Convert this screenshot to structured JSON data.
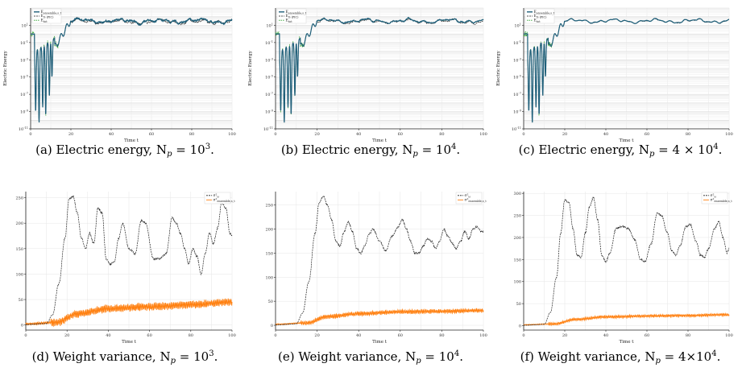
{
  "colors": {
    "subsampled": "#1f5f7a",
    "ssir": "#3d6b40",
    "ssir_dash": "#1f1f1f",
    "ssir_green": "#2ca02c",
    "variance_orange": "#ff7f0e",
    "variance_black": "#222222",
    "grid": "#e6e6e6"
  },
  "chart_data": [
    {
      "id": "a",
      "type": "line",
      "caption": "(a) Electric energy, N_p = 10^3.",
      "caption_main": "(a) Electric energy, N",
      "caption_sub": "p",
      "caption_tail": " = 10",
      "caption_sup": "3",
      "caption_end": ".",
      "xlabel": "Time t",
      "ylabel": "Electric Energy",
      "xlim": [
        0,
        100
      ],
      "yscale": "log",
      "ylim": [
        1e-11,
        1000.0
      ],
      "xticks": [
        "0",
        "20",
        "40",
        "60",
        "80",
        "100"
      ],
      "yticks": [
        "10^1",
        "10^-1",
        "10^-3",
        "10^-5",
        "10^-7",
        "10^-9",
        "10^-11"
      ],
      "legend": [
        "E_ensemble,s_t",
        "E_G (PIC)",
        "E_tot"
      ],
      "legend_pos": "top-left",
      "noise": 1.0,
      "seed": 11
    },
    {
      "id": "b",
      "type": "line",
      "caption_main": "(b) Electric energy, N",
      "caption_sub": "p",
      "caption_tail": " = 10",
      "caption_sup": "4",
      "caption_end": ".",
      "xlabel": "Time t",
      "ylabel": "Electric Energy",
      "xlim": [
        0,
        100
      ],
      "yscale": "log",
      "ylim": [
        1e-11,
        1000.0
      ],
      "xticks": [
        "0",
        "20",
        "40",
        "60",
        "80",
        "100"
      ],
      "yticks": [
        "10^1",
        "10^-1",
        "10^-3",
        "10^-5",
        "10^-7",
        "10^-9",
        "10^-11"
      ],
      "legend": [
        "E_ensemble,s_t",
        "E_G (PIC)",
        "E_tot"
      ],
      "legend_pos": "top-left",
      "noise": 0.6,
      "seed": 23
    },
    {
      "id": "c",
      "type": "line",
      "caption_main": "(c) Electric energy, N",
      "caption_sub": "p",
      "caption_tail": " = 4 × 10",
      "caption_sup": "4",
      "caption_end": ".",
      "xlabel": "Time t",
      "ylabel": "Electric Energy",
      "xlim": [
        0,
        100
      ],
      "yscale": "log",
      "ylim": [
        1e-11,
        1000.0
      ],
      "xticks": [
        "0",
        "20",
        "40",
        "60",
        "80",
        "100"
      ],
      "yticks": [
        "10^1",
        "10^-1",
        "10^-3",
        "10^-5",
        "10^-7",
        "10^-9",
        "10^-11"
      ],
      "legend": [
        "E_ensemble,s_t",
        "E_G (PIC)",
        "E_tot"
      ],
      "legend_pos": "top-left",
      "noise": 0.2,
      "seed": 37
    },
    {
      "id": "d",
      "type": "line",
      "caption_main": "(d) Weight variance, N",
      "caption_sub": "p",
      "caption_tail": " = 10",
      "caption_sup": "3",
      "caption_end": ".",
      "xlabel": "Time t",
      "xlim": [
        0,
        100
      ],
      "ylim": [
        -10,
        262
      ],
      "xticks": [
        "0",
        "20",
        "40",
        "60",
        "80",
        "100"
      ],
      "yticks": [
        "0",
        "50",
        "100",
        "150",
        "200",
        "250"
      ],
      "yvals": [
        0,
        50,
        100,
        150,
        200,
        250
      ],
      "legend": [
        "σ²_ω",
        "σ²_ensemble,s_t"
      ],
      "legend_pos": "top-right",
      "black_keypoints": [
        [
          0,
          1
        ],
        [
          10,
          3
        ],
        [
          13,
          20
        ],
        [
          16,
          80
        ],
        [
          19,
          170
        ],
        [
          21,
          248
        ],
        [
          23,
          252
        ],
        [
          25,
          220
        ],
        [
          27,
          170
        ],
        [
          29,
          150
        ],
        [
          31,
          180
        ],
        [
          33,
          160
        ],
        [
          35,
          230
        ],
        [
          37,
          220
        ],
        [
          39,
          130
        ],
        [
          41,
          120
        ],
        [
          43,
          125
        ],
        [
          45,
          170
        ],
        [
          47,
          200
        ],
        [
          50,
          150
        ],
        [
          53,
          140
        ],
        [
          56,
          205
        ],
        [
          58,
          200
        ],
        [
          62,
          130
        ],
        [
          65,
          130
        ],
        [
          68,
          140
        ],
        [
          71,
          210
        ],
        [
          73,
          200
        ],
        [
          75,
          180
        ],
        [
          77,
          150
        ],
        [
          79,
          120
        ],
        [
          81,
          150
        ],
        [
          83,
          135
        ],
        [
          85,
          100
        ],
        [
          87,
          140
        ],
        [
          89,
          180
        ],
        [
          91,
          160
        ],
        [
          93,
          190
        ],
        [
          95,
          240
        ],
        [
          97,
          230
        ],
        [
          99,
          180
        ],
        [
          100,
          175
        ]
      ],
      "orange_trend": [
        [
          0,
          2
        ],
        [
          15,
          5
        ],
        [
          25,
          22
        ],
        [
          40,
          32
        ],
        [
          60,
          36
        ],
        [
          80,
          40
        ],
        [
          100,
          45
        ]
      ],
      "orange_amp": 6
    },
    {
      "id": "e",
      "type": "line",
      "caption_main": "(e) Weight variance, N",
      "caption_sub": "p",
      "caption_tail": " = 10",
      "caption_sup": "4",
      "caption_end": ".",
      "xlabel": "Time t",
      "xlim": [
        0,
        100
      ],
      "ylim": [
        -10,
        278
      ],
      "xticks": [
        "0",
        "20",
        "40",
        "60",
        "80",
        "100"
      ],
      "yticks": [
        "0",
        "50",
        "100",
        "150",
        "200",
        "250"
      ],
      "yvals": [
        0,
        50,
        100,
        150,
        200,
        250
      ],
      "legend": [
        "σ²_ω",
        "σ²_ensemble,s_t"
      ],
      "legend_pos": "top-right",
      "black_keypoints": [
        [
          0,
          1
        ],
        [
          10,
          3
        ],
        [
          13,
          25
        ],
        [
          16,
          90
        ],
        [
          19,
          190
        ],
        [
          21,
          255
        ],
        [
          23,
          268
        ],
        [
          25,
          250
        ],
        [
          27,
          220
        ],
        [
          29,
          175
        ],
        [
          31,
          165
        ],
        [
          33,
          195
        ],
        [
          35,
          215
        ],
        [
          37,
          195
        ],
        [
          39,
          160
        ],
        [
          41,
          150
        ],
        [
          43,
          165
        ],
        [
          45,
          190
        ],
        [
          47,
          200
        ],
        [
          50,
          175
        ],
        [
          53,
          155
        ],
        [
          56,
          185
        ],
        [
          59,
          205
        ],
        [
          61,
          220
        ],
        [
          63,
          200
        ],
        [
          65,
          175
        ],
        [
          67,
          150
        ],
        [
          69,
          150
        ],
        [
          71,
          165
        ],
        [
          73,
          180
        ],
        [
          75,
          175
        ],
        [
          77,
          160
        ],
        [
          79,
          175
        ],
        [
          81,
          200
        ],
        [
          83,
          185
        ],
        [
          85,
          170
        ],
        [
          87,
          160
        ],
        [
          89,
          175
        ],
        [
          91,
          195
        ],
        [
          93,
          180
        ],
        [
          95,
          200
        ],
        [
          97,
          205
        ],
        [
          99,
          195
        ],
        [
          100,
          195
        ]
      ],
      "orange_trend": [
        [
          0,
          2
        ],
        [
          15,
          5
        ],
        [
          25,
          18
        ],
        [
          40,
          24
        ],
        [
          60,
          28
        ],
        [
          80,
          29
        ],
        [
          100,
          31
        ]
      ],
      "orange_amp": 3.5
    },
    {
      "id": "f",
      "type": "line",
      "caption_main": "(f) Weight variance, N",
      "caption_sub": "p",
      "caption_tail": " = 4×10",
      "caption_sup": "4",
      "caption_end": ".",
      "xlabel": "Time t",
      "xlim": [
        0,
        100
      ],
      "ylim": [
        -10,
        304
      ],
      "xticks": [
        "0",
        "20",
        "40",
        "60",
        "80",
        "100"
      ],
      "yticks": [
        "0",
        "50",
        "100",
        "150",
        "200",
        "250",
        "300"
      ],
      "yvals": [
        0,
        50,
        100,
        150,
        200,
        250,
        300
      ],
      "legend": [
        "σ²_ω",
        "σ²_ensemble,s_t"
      ],
      "legend_pos": "top-right",
      "black_keypoints": [
        [
          0,
          1
        ],
        [
          10,
          3
        ],
        [
          13,
          30
        ],
        [
          16,
          110
        ],
        [
          18,
          210
        ],
        [
          20,
          285
        ],
        [
          22,
          280
        ],
        [
          24,
          220
        ],
        [
          26,
          160
        ],
        [
          28,
          155
        ],
        [
          30,
          210
        ],
        [
          32,
          270
        ],
        [
          34,
          290
        ],
        [
          36,
          240
        ],
        [
          38,
          160
        ],
        [
          40,
          145
        ],
        [
          42,
          165
        ],
        [
          45,
          220
        ],
        [
          48,
          225
        ],
        [
          51,
          220
        ],
        [
          54,
          195
        ],
        [
          57,
          150
        ],
        [
          59,
          145
        ],
        [
          62,
          185
        ],
        [
          65,
          255
        ],
        [
          67,
          250
        ],
        [
          70,
          210
        ],
        [
          72,
          170
        ],
        [
          74,
          160
        ],
        [
          76,
          180
        ],
        [
          79,
          225
        ],
        [
          81,
          230
        ],
        [
          84,
          190
        ],
        [
          86,
          160
        ],
        [
          88,
          155
        ],
        [
          90,
          175
        ],
        [
          93,
          220
        ],
        [
          95,
          235
        ],
        [
          97,
          200
        ],
        [
          99,
          165
        ],
        [
          100,
          175
        ]
      ],
      "orange_trend": [
        [
          0,
          2
        ],
        [
          15,
          4
        ],
        [
          25,
          14
        ],
        [
          40,
          20
        ],
        [
          60,
          22
        ],
        [
          80,
          23
        ],
        [
          100,
          25
        ]
      ],
      "orange_amp": 2.5
    }
  ]
}
